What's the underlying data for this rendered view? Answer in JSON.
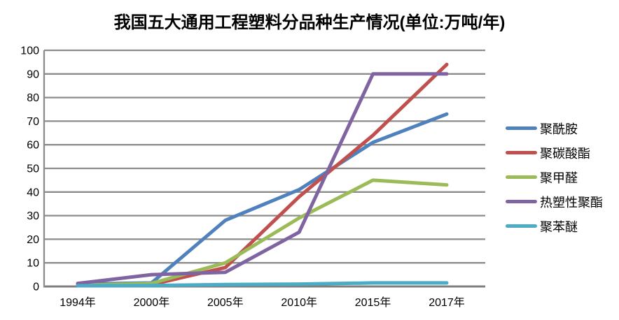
{
  "title": "我国五大通用工程塑料分品种生产情况(单位:万吨/年)",
  "chart_data": {
    "type": "line",
    "title": "我国五大通用工程塑料分品种生产情况(单位:万吨/年)",
    "unit_label": "万吨/年",
    "categories": [
      "1994年",
      "2000年",
      "2005年",
      "2010年",
      "2015年",
      "2017年"
    ],
    "series": [
      {
        "name": "聚酰胺",
        "color": "#4F81BD",
        "values": [
          1.0,
          1.5,
          28,
          41,
          61,
          73
        ]
      },
      {
        "name": "聚碳酸酯",
        "color": "#C0504D",
        "values": [
          0.3,
          0.8,
          8,
          38,
          64,
          94
        ]
      },
      {
        "name": "聚甲醛",
        "color": "#9BBB59",
        "values": [
          0.5,
          1.3,
          10,
          29,
          45,
          43
        ]
      },
      {
        "name": "热塑性聚酯",
        "color": "#8064A2",
        "values": [
          1.3,
          5.0,
          6,
          23,
          90,
          90
        ]
      },
      {
        "name": "聚苯醚",
        "color": "#4BACC6",
        "values": [
          0.3,
          0.4,
          0.8,
          1,
          1.5,
          1.5
        ]
      }
    ],
    "xlabel": "",
    "ylabel": "",
    "ylim": [
      0,
      100
    ],
    "ytick_step": 10,
    "yticks": [
      0,
      10,
      20,
      30,
      40,
      50,
      60,
      70,
      80,
      90,
      100
    ],
    "grid": true,
    "legend_position": "right",
    "gridline_color": "#8C8C8C",
    "axis_line_color": "#7F7F7F",
    "tick_label_color": "#000000"
  }
}
